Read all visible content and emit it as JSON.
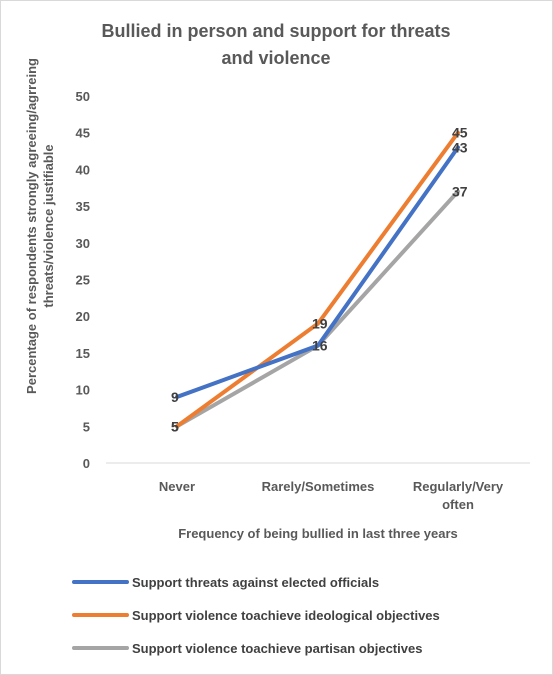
{
  "chart_data": {
    "type": "line",
    "title_lines": [
      "Bullied in person and support for threats",
      "and violence"
    ],
    "xlabel": "Frequency of  being bullied in last three years",
    "ylabel_lines": [
      "Percentage of respondents strongly agreeing/agrreing",
      "threats/violence justifiable"
    ],
    "categories": [
      [
        "Never"
      ],
      [
        "Rarely/Sometimes"
      ],
      [
        "Regularly/Very",
        "often"
      ]
    ],
    "ylim": [
      0,
      50
    ],
    "yticks": [
      0,
      5,
      10,
      15,
      20,
      25,
      30,
      35,
      40,
      45,
      50
    ],
    "grid": false,
    "legend_position": "bottom",
    "series": [
      {
        "name": "Support threats against elected officials",
        "values": [
          9,
          16,
          43
        ],
        "color": "#4472C4",
        "labels": [
          "9",
          "16",
          "43"
        ]
      },
      {
        "name": "Support violence toachieve ideological objectives",
        "values": [
          5,
          19,
          45
        ],
        "color": "#ED7D31",
        "labels": [
          "5",
          "19",
          "45"
        ]
      },
      {
        "name": "Support violence toachieve partisan objectives",
        "values": [
          5,
          16,
          37
        ],
        "color": "#A5A5A5",
        "labels": [
          "5",
          "",
          "37"
        ]
      }
    ]
  }
}
